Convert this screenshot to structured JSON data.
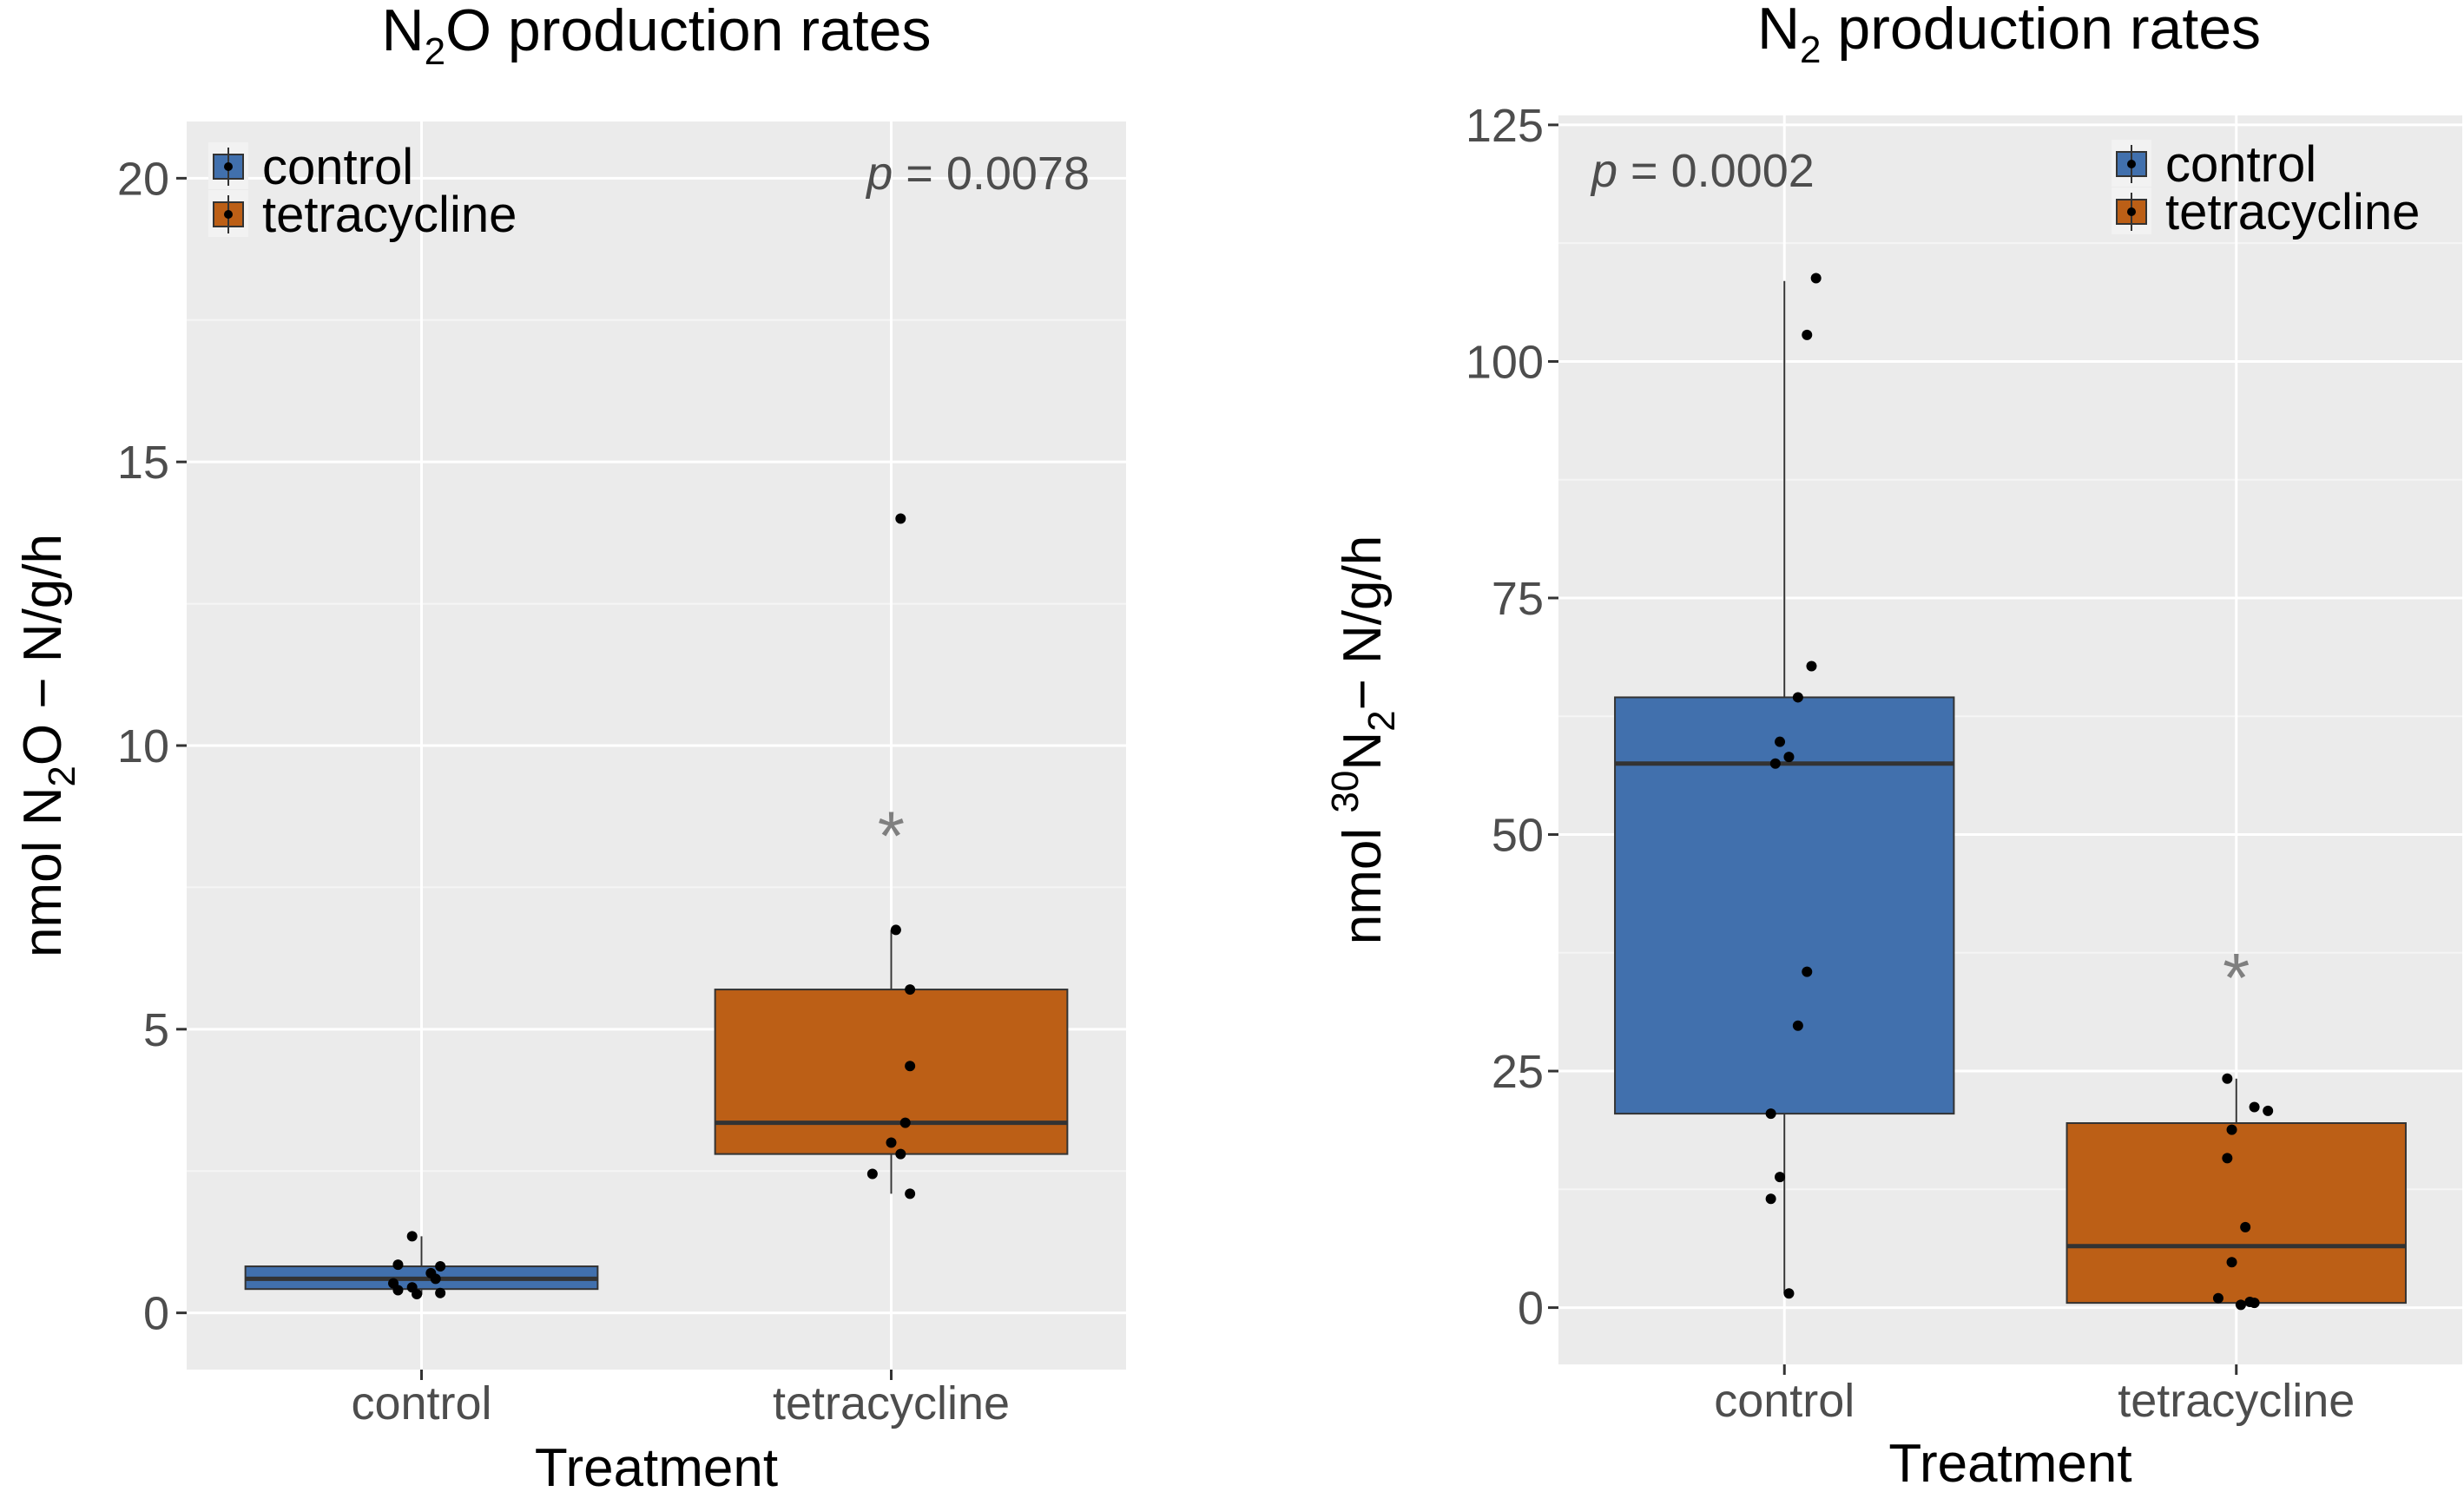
{
  "chart_data": [
    {
      "type": "boxplot",
      "title": "N2O production rates",
      "title_parts": {
        "pre": "N",
        "sub": "2",
        "post": "O production rates"
      },
      "xlabel": "Treatment",
      "ylabel": "nmol N2O − N/g/h",
      "ylabel_parts": {
        "pre": "nmol N",
        "sub": "2",
        "post": "O − N/g/h"
      },
      "ylim": [
        -1,
        21
      ],
      "yticks": [
        0,
        5,
        10,
        15,
        20
      ],
      "ytick_labels": [
        "0",
        "5",
        "10",
        "15",
        "20"
      ],
      "categories": [
        "control",
        "tetracycline"
      ],
      "legend": {
        "position": "top-left",
        "entries": [
          "control",
          "tetracycline"
        ]
      },
      "annotation": {
        "p_symbol": "p",
        "p_text": " = 0.0078",
        "star": "*",
        "star_category": "tetracycline",
        "star_y": 8.6
      },
      "series": [
        {
          "name": "control",
          "color": "#4170AD",
          "box": {
            "q1": 0.42,
            "median": 0.6,
            "q3": 0.82,
            "whisker_low": 0.32,
            "whisker_high": 1.35
          },
          "points": [
            [
              -0.02,
              1.35
            ],
            [
              -0.05,
              0.85
            ],
            [
              0.02,
              0.7
            ],
            [
              0.04,
              0.82
            ],
            [
              0.03,
              0.6
            ],
            [
              -0.06,
              0.52
            ],
            [
              -0.02,
              0.45
            ],
            [
              -0.05,
              0.4
            ],
            [
              -0.01,
              0.33
            ],
            [
              0.04,
              0.35
            ]
          ]
        },
        {
          "name": "tetracycline",
          "color": "#BC5F16",
          "box": {
            "q1": 2.8,
            "median": 3.35,
            "q3": 5.7,
            "whisker_low": 2.1,
            "whisker_high": 6.75
          },
          "points": [
            [
              0.02,
              14.0
            ],
            [
              0.01,
              6.75
            ],
            [
              0.04,
              5.7
            ],
            [
              0.04,
              4.35
            ],
            [
              0.03,
              3.35
            ],
            [
              0.0,
              3.0
            ],
            [
              0.02,
              2.8
            ],
            [
              -0.04,
              2.45
            ],
            [
              0.04,
              2.1
            ]
          ]
        }
      ]
    },
    {
      "type": "boxplot",
      "title": "N2 production rates",
      "title_parts": {
        "pre": "N",
        "sub": "2",
        "post": " production rates"
      },
      "xlabel": "Treatment",
      "ylabel": "nmol 30N2 − N/g/h",
      "ylabel_parts": {
        "pre": "nmol ",
        "sup": "30",
        "mid": "N",
        "sub": "2",
        "post": "− N/g/h"
      },
      "ylim": [
        -6,
        126
      ],
      "yticks": [
        0,
        25,
        50,
        75,
        100,
        125
      ],
      "ytick_labels": [
        "0",
        "25",
        "50",
        "75",
        "100",
        "125"
      ],
      "categories": [
        "control",
        "tetracycline"
      ],
      "legend": {
        "position": "top-right",
        "entries": [
          "control",
          "tetracycline"
        ]
      },
      "annotation": {
        "p_symbol": "p",
        "p_text": " = 0.0002",
        "star": "*",
        "star_category": "tetracycline",
        "star_y": 36
      },
      "series": [
        {
          "name": "control",
          "color": "#4170AD",
          "box": {
            "q1": 20.5,
            "median": 57.5,
            "q3": 64.5,
            "whisker_low": 1.5,
            "whisker_high": 108.5
          },
          "points": [
            [
              0.07,
              108.8
            ],
            [
              0.05,
              102.8
            ],
            [
              0.06,
              67.8
            ],
            [
              0.03,
              64.5
            ],
            [
              -0.01,
              59.8
            ],
            [
              0.01,
              58.2
            ],
            [
              -0.02,
              57.5
            ],
            [
              0.05,
              35.5
            ],
            [
              0.03,
              29.8
            ],
            [
              -0.03,
              20.5
            ],
            [
              -0.01,
              13.8
            ],
            [
              -0.03,
              11.5
            ],
            [
              0.01,
              1.5
            ]
          ]
        },
        {
          "name": "tetracycline",
          "color": "#BC5F16",
          "box": {
            "q1": 0.5,
            "median": 6.5,
            "q3": 19.5,
            "whisker_low": 0.2,
            "whisker_high": 24.2
          },
          "points": [
            [
              -0.02,
              24.2
            ],
            [
              0.04,
              21.2
            ],
            [
              0.07,
              20.8
            ],
            [
              -0.01,
              18.8
            ],
            [
              -0.02,
              15.8
            ],
            [
              0.02,
              8.5
            ],
            [
              -0.01,
              4.8
            ],
            [
              -0.04,
              1.0
            ],
            [
              0.03,
              0.6
            ],
            [
              0.01,
              0.3
            ],
            [
              0.04,
              0.5
            ]
          ]
        }
      ]
    }
  ]
}
